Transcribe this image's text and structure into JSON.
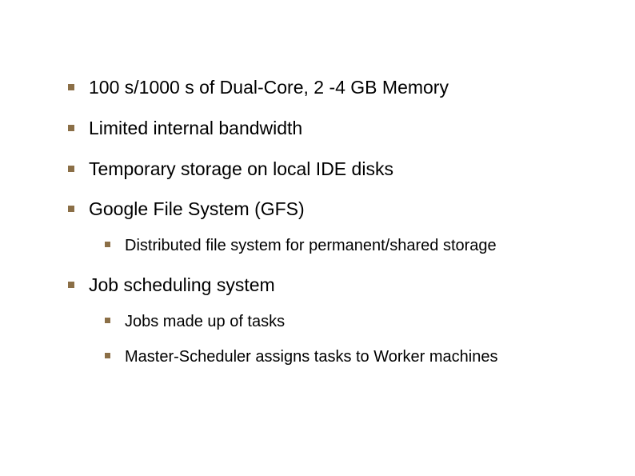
{
  "colors": {
    "bullet": "#8b6f47",
    "text": "#000000",
    "background": "#ffffff"
  },
  "typography": {
    "main_fontsize": 23,
    "sub_fontsize": 20,
    "font_family": "Arial"
  },
  "bullets": [
    {
      "text": "100 s/1000 s of Dual-Core, 2 -4 GB Memory",
      "children": []
    },
    {
      "text": "Limited internal bandwidth",
      "children": []
    },
    {
      "text": "Temporary storage on local IDE disks",
      "children": []
    },
    {
      "text": "Google File System (GFS)",
      "children": [
        "Distributed file system for permanent/shared storage"
      ]
    },
    {
      "text": "Job scheduling system",
      "children": [
        "Jobs made up of tasks",
        "Master-Scheduler assigns tasks to Worker machines"
      ]
    }
  ]
}
